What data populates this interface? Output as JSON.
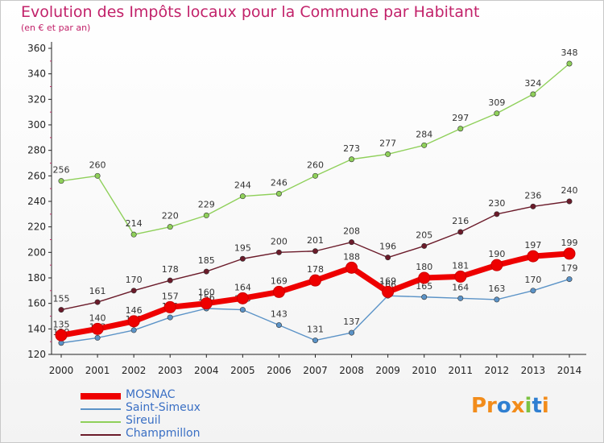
{
  "title": "Evolution des Impôts locaux pour la Commune par Habitant",
  "subtitle": "(en € et par an)",
  "logo_text": "Proxiti",
  "chart_data": {
    "type": "line",
    "title": "Evolution des Impôts locaux pour la Commune par Habitant",
    "subtitle": "(en € et par an)",
    "x": [
      2000,
      2001,
      2002,
      2003,
      2004,
      2005,
      2006,
      2007,
      2008,
      2009,
      2010,
      2011,
      2012,
      2013,
      2014
    ],
    "ylim": [
      120,
      360
    ],
    "yticks": [
      120,
      140,
      160,
      180,
      200,
      220,
      240,
      260,
      280,
      300,
      320,
      340,
      360
    ],
    "grid": false,
    "legend_position": "bottom-left",
    "series": [
      {
        "name": "Champmillon",
        "color": "#6b1b2a",
        "values": [
          155,
          161,
          170,
          178,
          185,
          195,
          200,
          201,
          208,
          196,
          205,
          216,
          230,
          236,
          240
        ]
      },
      {
        "name": "Sireuil",
        "color": "#8fd05a",
        "values": [
          256,
          260,
          214,
          220,
          229,
          244,
          246,
          260,
          273,
          277,
          284,
          297,
          309,
          324,
          348
        ]
      },
      {
        "name": "Saint-Simeux",
        "color": "#5b93c7",
        "values": [
          129,
          133,
          139,
          149,
          156,
          155,
          143,
          131,
          137,
          166,
          165,
          164,
          163,
          170,
          179
        ]
      },
      {
        "name": "MOSNAC",
        "color": "#ee0000",
        "values": [
          135,
          140,
          146,
          157,
          160,
          164,
          169,
          178,
          188,
          169,
          180,
          181,
          190,
          197,
          199
        ]
      }
    ]
  }
}
